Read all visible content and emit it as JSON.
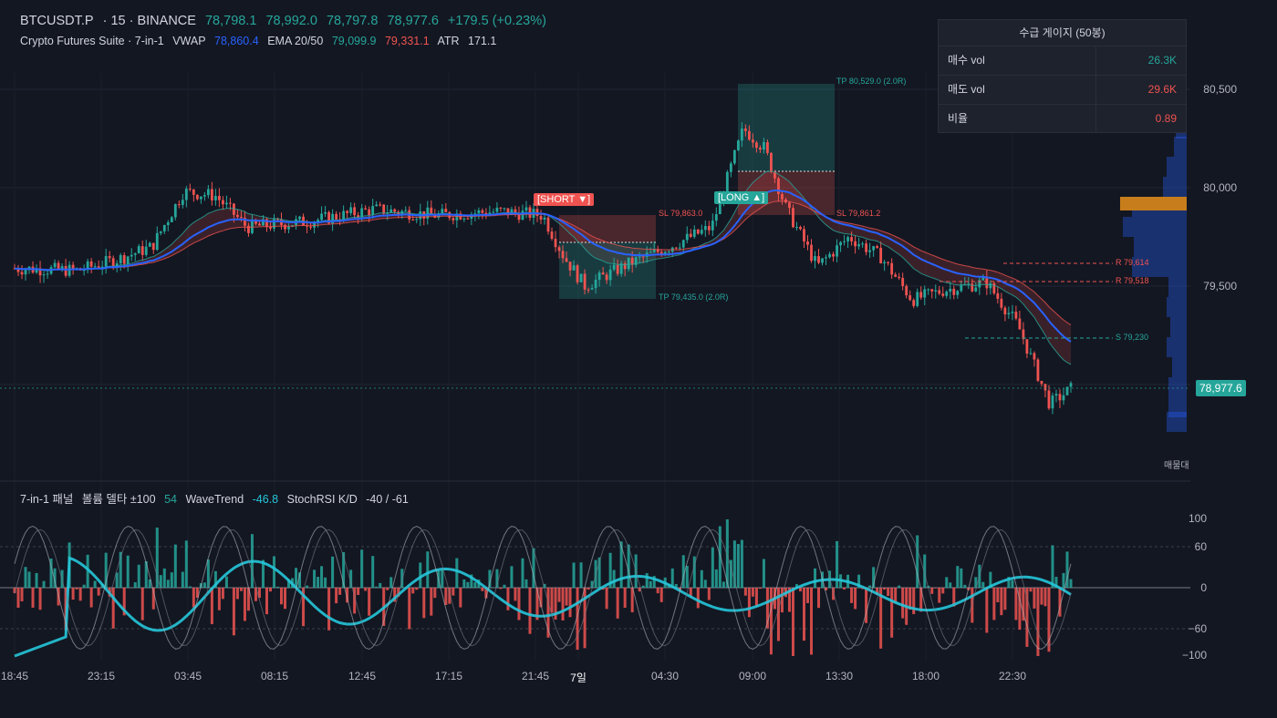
{
  "header": {
    "symbol": "BTCUSDT.P",
    "interval": "· 15 · BINANCE",
    "open": "78,798.1",
    "high": "78,992.0",
    "low": "78,797.8",
    "close": "78,977.6",
    "change": "+179.5 (+0.23%)",
    "indicator_name": "Crypto Futures Suite · 7-in-1",
    "vwap_label": "VWAP",
    "vwap_value": "78,860.4",
    "ema_label": "EMA 20/50",
    "ema20_value": "79,099.9",
    "ema50_value": "79,331.1",
    "atr_label": "ATR",
    "atr_value": "171.1"
  },
  "gauge": {
    "title": "수급 게이지 (50봉)",
    "rows": [
      {
        "label": "매수 vol",
        "value": "26.3K",
        "color": "#26a69a"
      },
      {
        "label": "매도 vol",
        "value": "29.6K",
        "color": "#ef5350"
      },
      {
        "label": "비율",
        "value": "0.89",
        "color": "#ef5350"
      }
    ]
  },
  "price_axis": [
    "80,500",
    "80,000",
    "79,500"
  ],
  "current_price": "78,977.6",
  "volume_profile_label": "매물대",
  "signals": {
    "short": "[SHORT ▼]",
    "long": "[LONG ▲]",
    "short_sl": "SL 79,863.0",
    "short_tp": "TP 79,435.0  (2.0R)",
    "long_tp": "TP 80,529.0  (2.0R)",
    "long_sl": "SL 79,861.2"
  },
  "levels": {
    "r1": "R 79,614",
    "r2": "R 79,518",
    "s1": "S 79,230"
  },
  "panel": {
    "title": "7-in-1 패널",
    "vol_delta_label": "볼륨 델타 ±100",
    "vol_delta_value": "54",
    "wt_label": "WaveTrend",
    "wt_value": "-46.8",
    "stoch_label": "StochRSI K/D",
    "stoch_value": "-40 / -61",
    "axis": [
      "100",
      "60",
      "0",
      "−60",
      "−100"
    ]
  },
  "time_axis": [
    "18:45",
    "23:15",
    "03:45",
    "08:15",
    "12:45",
    "17:15",
    "21:45",
    "7일",
    "04:30",
    "09:00",
    "13:30",
    "18:00",
    "22:30"
  ],
  "colors": {
    "up": "#26a69a",
    "down": "#ef5350",
    "vwap": "#2962ff",
    "bg": "#131722"
  },
  "chart_data": {
    "type": "candlestick",
    "price_range": [
      78700,
      80600
    ],
    "price_key_points": [
      {
        "t": 0,
        "p": 79590
      },
      {
        "t": 0.06,
        "p": 79580
      },
      {
        "t": 0.1,
        "p": 79640
      },
      {
        "t": 0.13,
        "p": 79700
      },
      {
        "t": 0.16,
        "p": 79980
      },
      {
        "t": 0.19,
        "p": 79960
      },
      {
        "t": 0.22,
        "p": 79800
      },
      {
        "t": 0.28,
        "p": 79830
      },
      {
        "t": 0.34,
        "p": 79890
      },
      {
        "t": 0.4,
        "p": 79860
      },
      {
        "t": 0.46,
        "p": 79880
      },
      {
        "t": 0.5,
        "p": 79860
      },
      {
        "t": 0.52,
        "p": 79650
      },
      {
        "t": 0.54,
        "p": 79500
      },
      {
        "t": 0.58,
        "p": 79610
      },
      {
        "t": 0.62,
        "p": 79700
      },
      {
        "t": 0.66,
        "p": 79800
      },
      {
        "t": 0.69,
        "p": 80300
      },
      {
        "t": 0.71,
        "p": 80200
      },
      {
        "t": 0.73,
        "p": 79900
      },
      {
        "t": 0.76,
        "p": 79600
      },
      {
        "t": 0.79,
        "p": 79750
      },
      {
        "t": 0.82,
        "p": 79650
      },
      {
        "t": 0.85,
        "p": 79430
      },
      {
        "t": 0.88,
        "p": 79480
      },
      {
        "t": 0.92,
        "p": 79520
      },
      {
        "t": 0.95,
        "p": 79300
      },
      {
        "t": 0.98,
        "p": 78900
      },
      {
        "t": 1.0,
        "p": 78977
      }
    ]
  }
}
